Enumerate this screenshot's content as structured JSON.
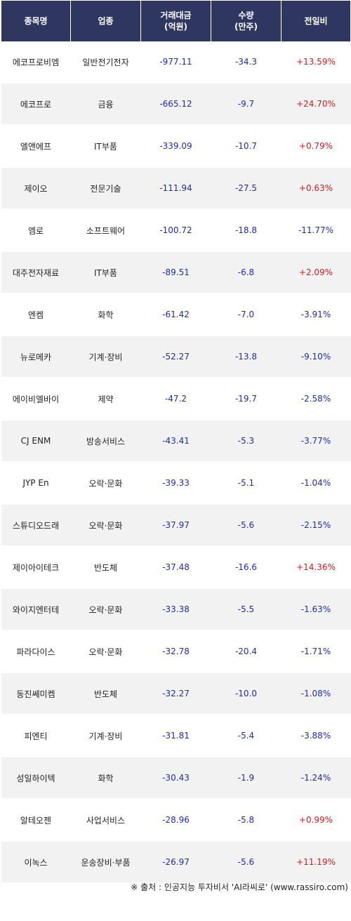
{
  "header": {
    "col1": "종목명",
    "col2": "업종",
    "col3_line1": "거래대금",
    "col3_line2": "(억원)",
    "col4_line1": "수량",
    "col4_line2": "(만주)",
    "col5": "전일비"
  },
  "rows": [
    {
      "name": "에코프로비엠",
      "sector": "일반전기전자",
      "amount": "-977.11",
      "qty": "-34.3",
      "change": "+13.59%",
      "dir": "up"
    },
    {
      "name": "에코프로",
      "sector": "금융",
      "amount": "-665.12",
      "qty": "-9.7",
      "change": "+24.70%",
      "dir": "up"
    },
    {
      "name": "엘앤에프",
      "sector": "IT부품",
      "amount": "-339.09",
      "qty": "-10.7",
      "change": "+0.79%",
      "dir": "up"
    },
    {
      "name": "제이오",
      "sector": "전문기술",
      "amount": "-111.94",
      "qty": "-27.5",
      "change": "+0.63%",
      "dir": "up"
    },
    {
      "name": "엠로",
      "sector": "소프트웨어",
      "amount": "-100.72",
      "qty": "-18.8",
      "change": "-11.77%",
      "dir": "down"
    },
    {
      "name": "대주전자재료",
      "sector": "IT부품",
      "amount": "-89.51",
      "qty": "-6.8",
      "change": "+2.09%",
      "dir": "up"
    },
    {
      "name": "엔켐",
      "sector": "화학",
      "amount": "-61.42",
      "qty": "-7.0",
      "change": "-3.91%",
      "dir": "down"
    },
    {
      "name": "뉴로메카",
      "sector": "기계·장비",
      "amount": "-52.27",
      "qty": "-13.8",
      "change": "-9.10%",
      "dir": "down"
    },
    {
      "name": "에이비엘바이",
      "sector": "제약",
      "amount": "-47.2",
      "qty": "-19.7",
      "change": "-2.58%",
      "dir": "down"
    },
    {
      "name": "CJ ENM",
      "sector": "방송서비스",
      "amount": "-43.41",
      "qty": "-5.3",
      "change": "-3.77%",
      "dir": "down"
    },
    {
      "name": "JYP En",
      "sector": "오락·문화",
      "amount": "-39.33",
      "qty": "-5.1",
      "change": "-1.04%",
      "dir": "down"
    },
    {
      "name": "스튜디오드래",
      "sector": "오락·문화",
      "amount": "-37.97",
      "qty": "-5.6",
      "change": "-2.15%",
      "dir": "down"
    },
    {
      "name": "제이아이테크",
      "sector": "반도체",
      "amount": "-37.48",
      "qty": "-16.6",
      "change": "+14.36%",
      "dir": "up"
    },
    {
      "name": "와이지엔터테",
      "sector": "오락·문화",
      "amount": "-33.38",
      "qty": "-5.5",
      "change": "-1.63%",
      "dir": "down"
    },
    {
      "name": "파라다이스",
      "sector": "오락·문화",
      "amount": "-32.78",
      "qty": "-20.4",
      "change": "-1.71%",
      "dir": "down"
    },
    {
      "name": "동진쎄미켐",
      "sector": "반도체",
      "amount": "-32.27",
      "qty": "-10.0",
      "change": "-1.08%",
      "dir": "down"
    },
    {
      "name": "피엔티",
      "sector": "기계·장비",
      "amount": "-31.81",
      "qty": "-5.4",
      "change": "-3.88%",
      "dir": "down"
    },
    {
      "name": "성일하이텍",
      "sector": "화학",
      "amount": "-30.43",
      "qty": "-1.9",
      "change": "-1.24%",
      "dir": "down"
    },
    {
      "name": "알테오젠",
      "sector": "사업서비스",
      "amount": "-28.96",
      "qty": "-5.8",
      "change": "+0.99%",
      "dir": "up"
    },
    {
      "name": "이녹스",
      "sector": "운송장비·부품",
      "amount": "-26.97",
      "qty": "-5.6",
      "change": "+11.19%",
      "dir": "up"
    }
  ],
  "footer": "※ 출처 : 인공지능 투자비서 'AI라씨로' (www.rassiro.com)",
  "colors": {
    "header_bg": "#2f3660",
    "up": "#e0141e",
    "down": "#1f2bb0",
    "stripe": "#f2f2f2"
  }
}
